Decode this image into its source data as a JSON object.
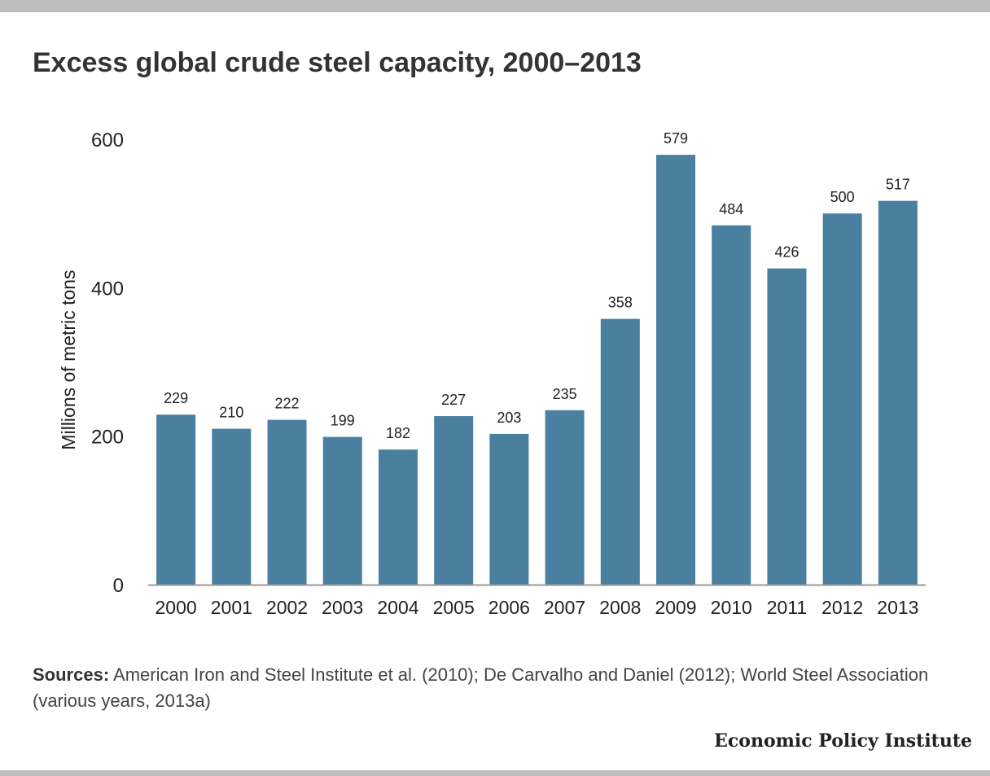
{
  "title": "Excess global crude steel capacity, 2000–2013",
  "chart_data": {
    "type": "bar",
    "title": "Excess global crude steel capacity, 2000–2013",
    "xlabel": "",
    "ylabel": "Millions of metric tons",
    "ylim": [
      0,
      600
    ],
    "yticks": [
      0,
      200,
      400,
      600
    ],
    "grid": false,
    "categories": [
      "2000",
      "2001",
      "2002",
      "2003",
      "2004",
      "2005",
      "2006",
      "2007",
      "2008",
      "2009",
      "2010",
      "2011",
      "2012",
      "2013"
    ],
    "values": [
      229,
      210,
      222,
      199,
      182,
      227,
      203,
      235,
      358,
      579,
      484,
      426,
      500,
      517
    ],
    "bar_color": "#4a7fa0"
  },
  "sources": {
    "label": "Sources:",
    "text": " American Iron and Steel Institute et al. (2010); De Carvalho and Daniel (2012); World Steel Association (various years, 2013a)"
  },
  "brand": "Economic Policy Institute"
}
